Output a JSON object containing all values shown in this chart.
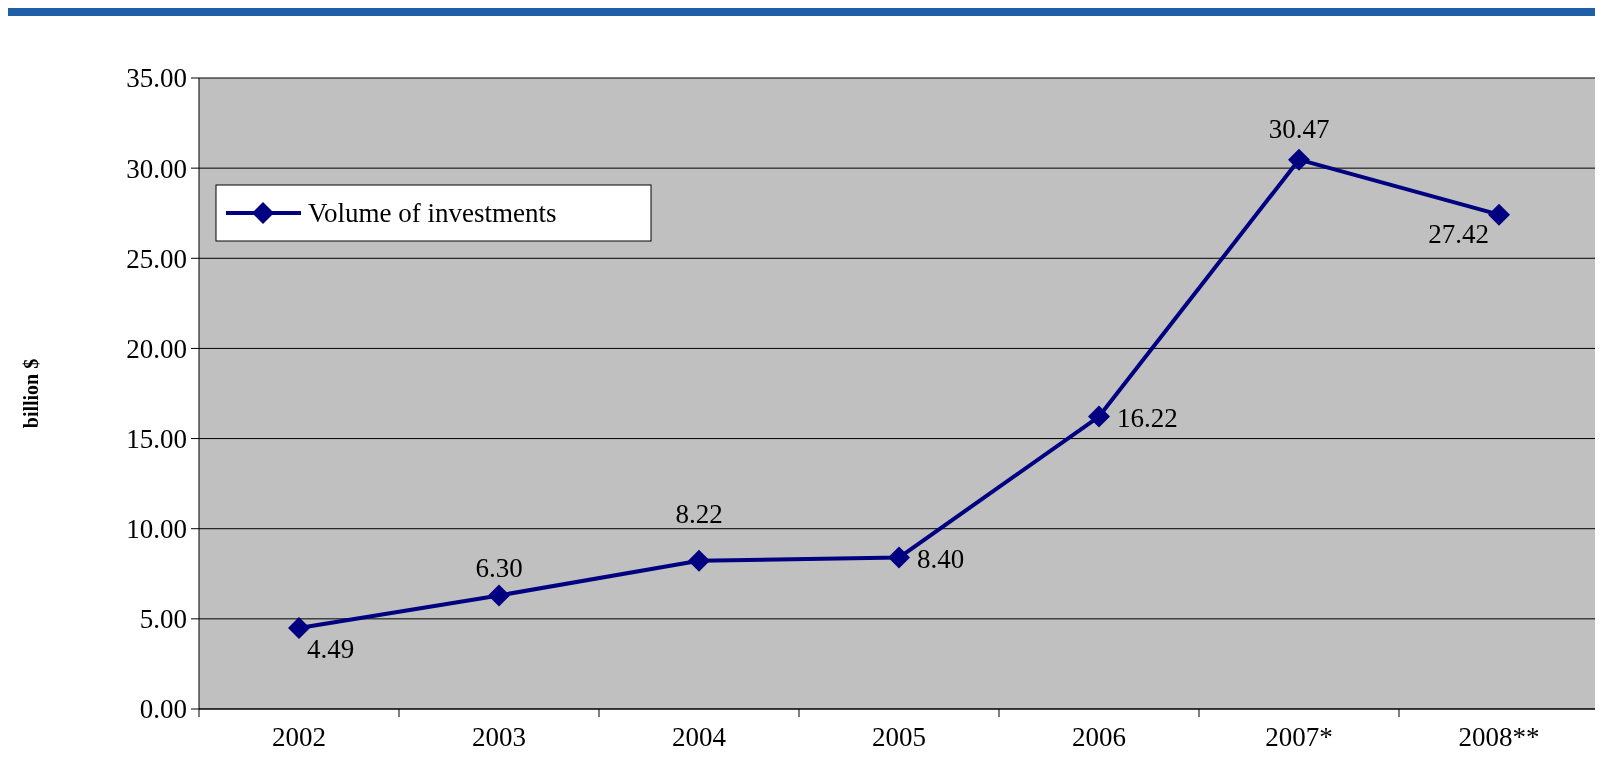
{
  "chart_data": {
    "type": "line",
    "ylabel": "billion $",
    "categories": [
      "2002",
      "2003",
      "2004",
      "2005",
      "2006",
      "2007*",
      "2008**"
    ],
    "series": [
      {
        "name": "Volume of investments",
        "color": "#000080",
        "values": [
          4.49,
          6.3,
          8.22,
          8.4,
          16.22,
          30.47,
          27.42
        ],
        "value_labels": [
          "4.49",
          "6.30",
          "8.22",
          "8.40",
          "16.22",
          "30.47",
          "27.42"
        ]
      }
    ],
    "ylim": [
      0,
      35
    ],
    "yticks": [
      {
        "value": 0,
        "label": "0.00"
      },
      {
        "value": 5,
        "label": "5.00"
      },
      {
        "value": 10,
        "label": "10.00"
      },
      {
        "value": 15,
        "label": "15.00"
      },
      {
        "value": 20,
        "label": "20.00"
      },
      {
        "value": 25,
        "label": "25.00"
      },
      {
        "value": 30,
        "label": "30.00"
      },
      {
        "value": 35,
        "label": "35.00"
      }
    ],
    "grid": "y",
    "legend": "top left",
    "marker": "diamond",
    "line_style": "solid"
  }
}
